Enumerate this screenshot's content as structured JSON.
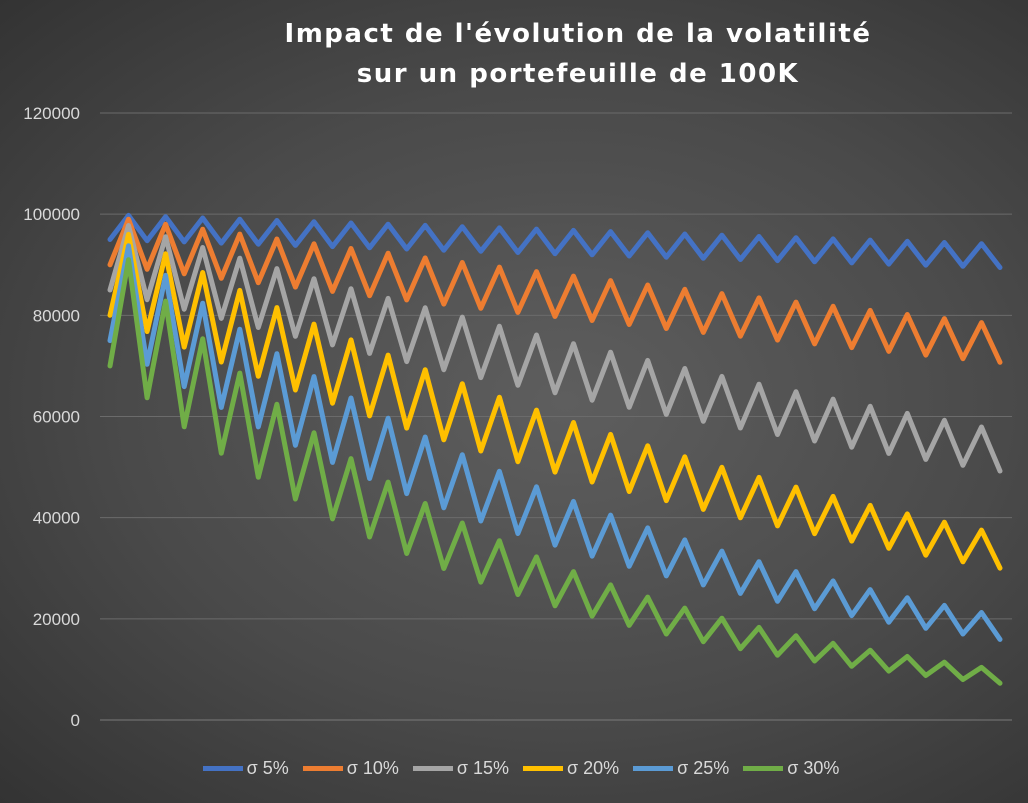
{
  "chart_data": {
    "type": "line",
    "title": [
      "Impact de l'évolution de la volatilité",
      "sur un portefeuille de 100K"
    ],
    "xlabel": "",
    "ylabel": "",
    "ylim": [
      0,
      120000
    ],
    "yticks": [
      0,
      20000,
      40000,
      60000,
      80000,
      100000,
      120000
    ],
    "grid": true,
    "legend_position": "bottom",
    "x_count": 49,
    "series": [
      {
        "name": "σ 5%",
        "color": "#4472C4",
        "values": [
          95000,
          99750,
          94763,
          99501,
          94526,
          99252,
          94289,
          99004,
          94054,
          98756,
          93818,
          98509,
          93584,
          98263,
          93350,
          98017,
          93117,
          97772,
          92884,
          97528,
          92652,
          97284,
          92420,
          97041,
          92189,
          96798,
          91958,
          96556,
          91728,
          96315,
          91499,
          96074,
          91270,
          95834,
          91042,
          95594,
          90815,
          95355,
          90588,
          95117,
          90361,
          94879,
          90135,
          94642,
          89910,
          94405,
          89685,
          94169,
          89461
        ]
      },
      {
        "name": "σ 10%",
        "color": "#ED7D31",
        "values": [
          90000,
          99000,
          89100,
          98010,
          88209,
          97030,
          87327,
          96060,
          86454,
          95099,
          85589,
          94148,
          84733,
          93207,
          83886,
          92274,
          83047,
          91352,
          82217,
          90438,
          81394,
          89534,
          80580,
          88638,
          79775,
          87752,
          78977,
          86875,
          78187,
          86006,
          77405,
          85146,
          76631,
          84294,
          75865,
          83451,
          75106,
          82617,
          74355,
          81791,
          73612,
          80973,
          72876,
          80163,
          72147,
          79361,
          71425,
          78568,
          70711
        ]
      },
      {
        "name": "σ 15%",
        "color": "#A5A5A5",
        "values": [
          85000,
          97750,
          83088,
          95551,
          81218,
          93401,
          79391,
          91299,
          77604,
          89245,
          75858,
          87237,
          74151,
          85274,
          72483,
          83356,
          70852,
          81480,
          69258,
          79647,
          67700,
          77855,
          66176,
          76103,
          64688,
          74391,
          63232,
          72717,
          61809,
          71081,
          60419,
          69482,
          59059,
          67918,
          57730,
          66390,
          56432,
          64896,
          55162,
          63436,
          53921,
          62009,
          52707,
          60614,
          51521,
          59250,
          50362,
          57917,
          49229
        ]
      },
      {
        "name": "σ 20%",
        "color": "#FFC000",
        "values": [
          80000,
          96000,
          76800,
          92160,
          73728,
          88474,
          70779,
          84935,
          67948,
          81537,
          65230,
          78276,
          62621,
          75145,
          60116,
          72139,
          57711,
          69253,
          55403,
          66483,
          53187,
          63824,
          51059,
          61271,
          49017,
          58820,
          47056,
          56467,
          45174,
          54209,
          43367,
          52040,
          41632,
          49959,
          39967,
          47960,
          38368,
          46042,
          36834,
          44200,
          35360,
          42432,
          33946,
          40735,
          32588,
          39106,
          31284,
          37541,
          30033
        ]
      },
      {
        "name": "σ 25%",
        "color": "#5B9BD5",
        "values": [
          75000,
          93750,
          70313,
          87891,
          65918,
          82398,
          61798,
          77248,
          57936,
          72420,
          54315,
          67893,
          50920,
          63650,
          47738,
          59672,
          44754,
          55943,
          41957,
          52446,
          39335,
          49168,
          36876,
          46095,
          34571,
          43214,
          32411,
          40513,
          30385,
          37981,
          28486,
          35608,
          26706,
          33382,
          25037,
          31296,
          23472,
          29340,
          22005,
          27506,
          20630,
          25787,
          19340,
          24175,
          18131,
          22664,
          16998,
          21248,
          15936
        ]
      },
      {
        "name": "σ 30%",
        "color": "#70AD47",
        "values": [
          70000,
          91000,
          63700,
          82810,
          57967,
          75357,
          52750,
          68575,
          48003,
          62403,
          43682,
          56787,
          39751,
          51676,
          36173,
          47025,
          32918,
          42793,
          29955,
          38942,
          27259,
          35437,
          24806,
          32248,
          22573,
          29345,
          20542,
          26704,
          18693,
          24301,
          17011,
          22114,
          15480,
          20124,
          14086,
          18312,
          12819,
          16664,
          11665,
          15165,
          10615,
          13800,
          9660,
          12558,
          8790,
          11428,
          7999,
          10399,
          7279
        ]
      }
    ]
  }
}
